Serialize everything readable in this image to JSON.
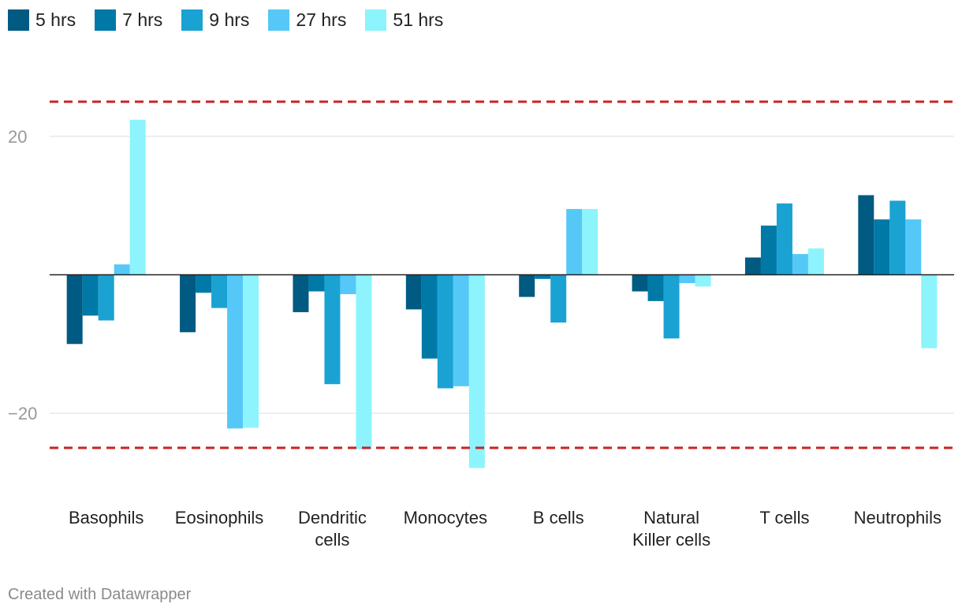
{
  "chart_data": {
    "type": "bar",
    "categories": [
      "Basophils",
      "Eosinophils",
      "Dendritic cells",
      "Monocytes",
      "B cells",
      "Natural Killer cells",
      "T cells",
      "Neutrophils"
    ],
    "category_lines": [
      [
        "Basophils"
      ],
      [
        "Eosinophils"
      ],
      [
        "Dendritic",
        "cells"
      ],
      [
        "Monocytes"
      ],
      [
        "B cells"
      ],
      [
        "Natural",
        "Killer cells"
      ],
      [
        "T cells"
      ],
      [
        "Neutrophils"
      ]
    ],
    "series": [
      {
        "name": "5 hrs",
        "color": "#005a82",
        "values": [
          -10,
          -8.3,
          -5.4,
          -5.0,
          -3.2,
          -2.4,
          2.5,
          11.5
        ]
      },
      {
        "name": "7 hrs",
        "color": "#0079a7",
        "values": [
          -5.9,
          -2.6,
          -2.4,
          -12.1,
          -0.6,
          -3.8,
          7.1,
          8.0
        ]
      },
      {
        "name": "9 hrs",
        "color": "#1aa2d3",
        "values": [
          -6.6,
          -4.8,
          -15.8,
          -16.4,
          -6.9,
          -9.2,
          10.3,
          10.7
        ]
      },
      {
        "name": "27 hrs",
        "color": "#55c8f7",
        "values": [
          1.5,
          -22.2,
          -2.8,
          -16.1,
          9.5,
          -1.2,
          3.0,
          8.0
        ]
      },
      {
        "name": "51 hrs",
        "color": "#8df3fc",
        "values": [
          22.4,
          -22.1,
          -25.2,
          -27.9,
          9.5,
          -1.7,
          3.8,
          -10.6
        ]
      }
    ],
    "y_ticks": [
      20,
      -20
    ],
    "y_tick_labels": [
      "20",
      "−20"
    ],
    "ylim": [
      -31,
      25
    ],
    "reference_lines": [
      25,
      -25
    ],
    "reference_line_color": "#cc2222",
    "xlabel": "",
    "ylabel": "",
    "grid": true,
    "legend_position": "top-left"
  },
  "footer": {
    "credit": "Created with Datawrapper"
  }
}
